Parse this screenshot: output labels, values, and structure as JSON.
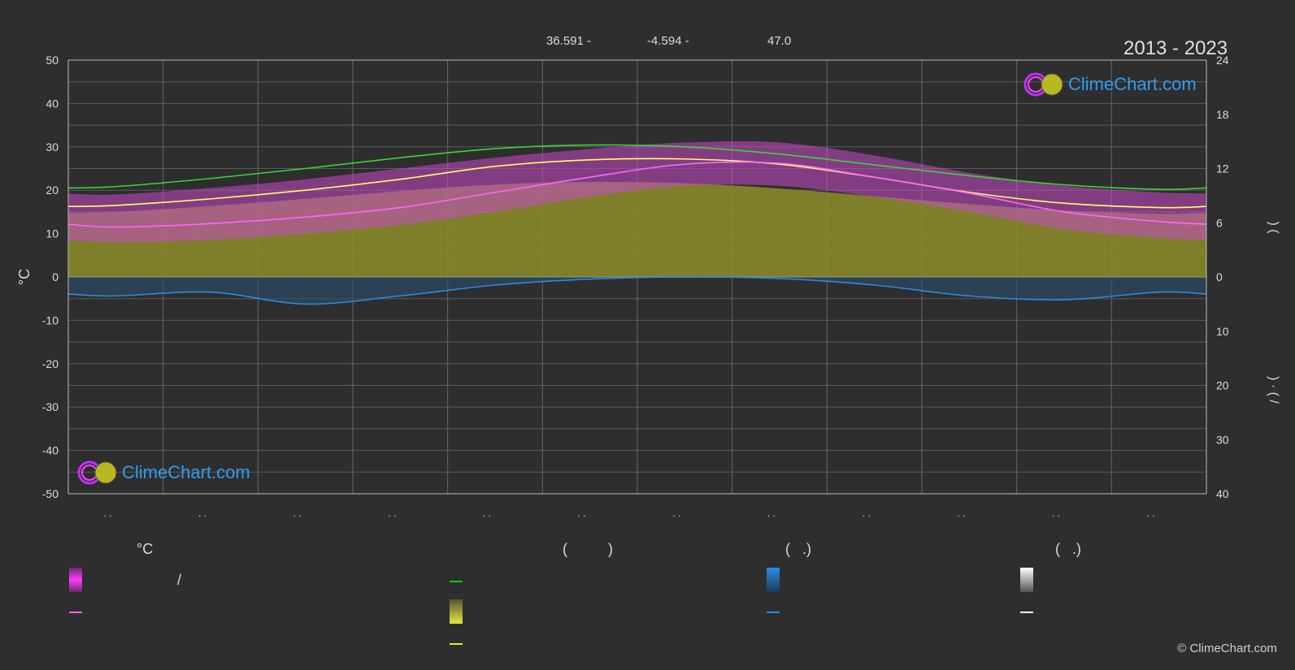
{
  "header": {
    "coord_lat": "36.591 -",
    "coord_lon": "-4.594 -",
    "elevation": "47.0",
    "years": "2013 - 2023"
  },
  "brand": {
    "name": "ClimeChart.com",
    "copyright": "© ClimeChart.com"
  },
  "legend": {
    "temp_header": "°C",
    "sun_header": "(          )",
    "rain_header": "(   .)",
    "snow_header": "(   .)",
    "slash": "/",
    "swatch_colors": {
      "temp_range": "#ff3cff",
      "daylight": "#00d400",
      "sunshine": "#e6e646",
      "rain": "#2d8ce6",
      "snow": "#e8e8e8",
      "mean_temp": "#ff66ff",
      "sunshine_line": "#e6e646",
      "rain_line": "#2d8ce6",
      "snow_line": "#ffffff"
    }
  },
  "chart_data": {
    "type": "line",
    "title": "2013 - 2023",
    "ylabel_left": "°C",
    "ylim_left": [
      -50,
      50
    ],
    "yticks_left": [
      50,
      40,
      30,
      20,
      10,
      0,
      -10,
      -20,
      -30,
      -40,
      -50
    ],
    "yticks_right_upper": [
      24,
      18,
      12,
      6,
      0
    ],
    "yticks_right_lower": [
      10,
      20,
      30,
      40
    ],
    "right_axis_label_upper": ")           (",
    "right_axis_label_lower": ")  ·  (           /",
    "month_tick_labels": [
      ". .",
      ". .",
      ". .",
      ". .",
      ". .",
      ". .",
      ". .",
      ". .",
      ". .",
      ". .",
      ". .",
      ". ."
    ],
    "months": [
      1,
      2,
      3,
      4,
      5,
      6,
      7,
      8,
      9,
      10,
      11,
      12
    ],
    "series": [
      {
        "key": "daylight",
        "color": "#3ad43a",
        "values": [
          10.0,
          10.9,
          12.0,
          13.2,
          14.2,
          14.6,
          14.4,
          13.6,
          12.4,
          11.2,
          10.2,
          9.7
        ]
      },
      {
        "key": "max_temp",
        "color": "#ffff66",
        "values": [
          16.5,
          18.0,
          20.0,
          22.5,
          25.5,
          27.0,
          27.2,
          26.0,
          23.0,
          19.5,
          17.0,
          16.0
        ]
      },
      {
        "key": "mean_temp",
        "color": "#ff66ff",
        "values": [
          11.5,
          12.3,
          13.8,
          16.0,
          19.5,
          23.0,
          26.0,
          26.2,
          23.0,
          19.3,
          15.0,
          12.8
        ]
      },
      {
        "key": "rain",
        "color": "#2e8ae0",
        "values": [
          3.5,
          2.8,
          5.0,
          3.5,
          1.5,
          0.4,
          0.0,
          0.3,
          1.5,
          3.5,
          4.2,
          2.8
        ]
      }
    ],
    "fill_bands": [
      {
        "key": "temp_range_max",
        "color": "#d020d0",
        "values": [
          19.0,
          20.5,
          22.5,
          25.0,
          27.5,
          29.5,
          31.0,
          31.0,
          28.0,
          24.0,
          21.0,
          19.5
        ]
      },
      {
        "key": "temp_range_min",
        "color": "#e070c0",
        "values": [
          8.0,
          8.5,
          10.0,
          12.0,
          15.0,
          18.5,
          21.0,
          21.0,
          18.5,
          15.0,
          11.0,
          9.0
        ]
      }
    ],
    "grid": true,
    "legend_position": "bottom"
  }
}
